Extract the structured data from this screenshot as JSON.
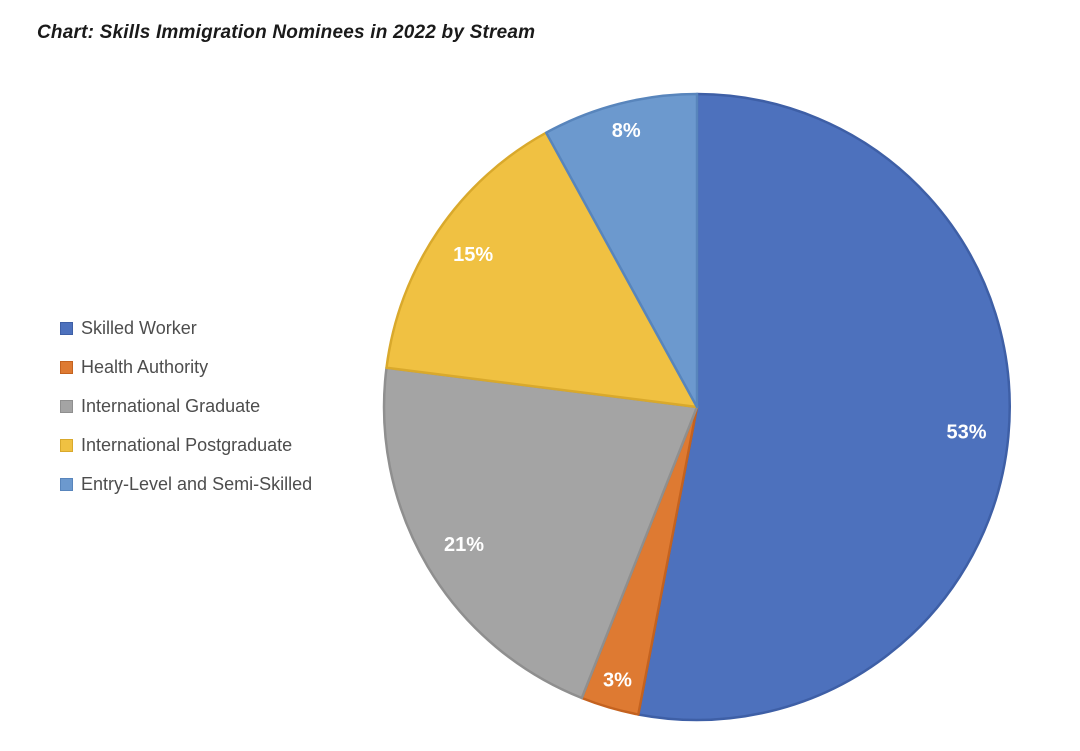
{
  "title": "Chart: Skills Immigration Nominees in 2022 by Stream",
  "chart_data": {
    "type": "pie",
    "title": "Chart: Skills Immigration Nominees in 2022 by Stream",
    "unit": "percent",
    "start_angle_deg": 0,
    "direction": "clockwise",
    "legend_position": "left",
    "grid": false,
    "background": "#FFFFFF",
    "title_color": "#1A1A1A",
    "data_label_color": "#FFFFFF",
    "legend_text_color": "#4D4D4D",
    "categories": [
      "Skilled Worker",
      "Health Authority",
      "International Graduate",
      "International Postgraduate",
      "Entry-Level and Semi-Skilled"
    ],
    "values": [
      53,
      3,
      21,
      15,
      8
    ],
    "slices": [
      {
        "label": "Skilled Worker",
        "value": 53,
        "data_label": "53%",
        "color": "#4D71BD",
        "border_color": "#3E5FA6"
      },
      {
        "label": "Health Authority",
        "value": 3,
        "data_label": "3%",
        "color": "#DE7A32",
        "border_color": "#C4621F"
      },
      {
        "label": "International Graduate",
        "value": 21,
        "data_label": "21%",
        "color": "#A4A4A4",
        "border_color": "#8F8F8F"
      },
      {
        "label": "International Postgraduate",
        "value": 15,
        "data_label": "15%",
        "color": "#F0C142",
        "border_color": "#D9A92C"
      },
      {
        "label": "Entry-Level and Semi-Skilled",
        "value": 8,
        "data_label": "8%",
        "color": "#6C99CE",
        "border_color": "#5885BC"
      }
    ]
  }
}
